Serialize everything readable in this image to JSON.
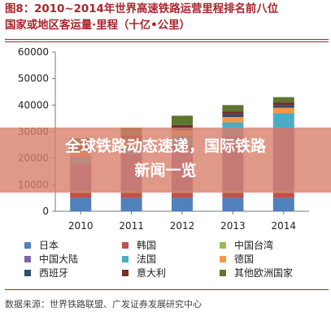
{
  "figure": {
    "title_line1": "图8：2010~2014年世界高速铁路运营里程排名前八位",
    "title_line2": "国家或地区客运量·里程（十亿•公里）",
    "source": "数据来源：世界铁路联盟、广发证券发展研究中心"
  },
  "banner": {
    "line1": "全球铁路动态速递，国际铁路",
    "line2": "新闻一览"
  },
  "colors": {
    "title": "#a8262c",
    "banner": "#d87e6a"
  },
  "chart_data": {
    "type": "bar",
    "stacked": true,
    "categories": [
      "2010",
      "2011",
      "2012",
      "2013",
      "2014"
    ],
    "ylim": [
      0,
      60000
    ],
    "yticks": [
      "0",
      "10000",
      "20000",
      "30000",
      "40000",
      "50000",
      "60000"
    ],
    "grid": false,
    "legend_position": "bottom",
    "series": [
      {
        "name": "日本",
        "color": "#4f81bd",
        "values": [
          5000,
          5000,
          5000,
          5000,
          5000
        ]
      },
      {
        "name": "韩国",
        "color": "#c0504d",
        "values": [
          2000,
          2000,
          2000,
          2000,
          2000
        ]
      },
      {
        "name": "中国台湾",
        "color": "#9bbb59",
        "values": [
          500,
          500,
          500,
          500,
          500
        ]
      },
      {
        "name": "中国大陆",
        "color": "#8064a2",
        "values": [
          10000,
          14000,
          17000,
          21000,
          24000
        ]
      },
      {
        "name": "法国",
        "color": "#4bacc6",
        "values": [
          3000,
          3000,
          4000,
          5000,
          5500
        ]
      },
      {
        "name": "德国",
        "color": "#f79646",
        "values": [
          2000,
          2000,
          2000,
          2000,
          2000
        ]
      },
      {
        "name": "西班牙",
        "color": "#2c4d75",
        "values": [
          1000,
          1000,
          1000,
          1000,
          1000
        ]
      },
      {
        "name": "意大利",
        "color": "#772c2a",
        "values": [
          1000,
          1000,
          1000,
          1000,
          1000
        ]
      },
      {
        "name": "其他欧洲国家",
        "color": "#5f7530",
        "values": [
          3000,
          3000,
          3500,
          2500,
          2000
        ]
      }
    ]
  }
}
